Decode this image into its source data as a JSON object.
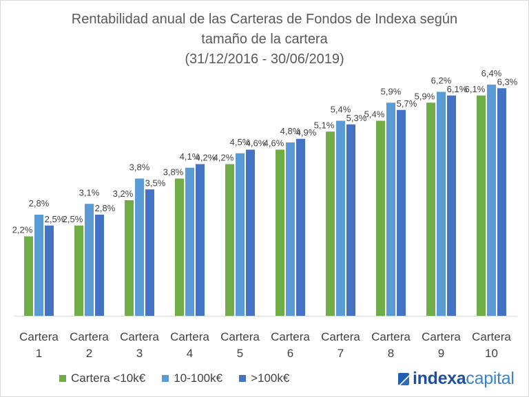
{
  "chart_data": {
    "type": "bar",
    "title": [
      "Rentabilidad anual de las Carteras de Fondos de Indexa según",
      "tamaño de la cartera",
      "(31/12/2016 - 30/06/2019)"
    ],
    "categories": [
      [
        "Cartera",
        "1"
      ],
      [
        "Cartera",
        "2"
      ],
      [
        "Cartera",
        "3"
      ],
      [
        "Cartera",
        "4"
      ],
      [
        "Cartera",
        "5"
      ],
      [
        "Cartera",
        "6"
      ],
      [
        "Cartera",
        "7"
      ],
      [
        "Cartera",
        "8"
      ],
      [
        "Cartera",
        "9"
      ],
      [
        "Cartera",
        "10"
      ]
    ],
    "series": [
      {
        "name": "Cartera <10k€",
        "color": "#70ad47",
        "values": [
          2.2,
          2.5,
          3.2,
          3.8,
          4.2,
          4.6,
          5.1,
          5.4,
          5.9,
          6.1
        ]
      },
      {
        "name": "10-100k€",
        "color": "#5b9bd5",
        "values": [
          2.8,
          3.1,
          3.8,
          4.1,
          4.5,
          4.8,
          5.4,
          5.9,
          6.2,
          6.4
        ]
      },
      {
        "name": ">100k€",
        "color": "#4472c4",
        "values": [
          2.5,
          2.8,
          3.5,
          4.2,
          4.6,
          4.9,
          5.3,
          5.7,
          6.1,
          6.3
        ]
      }
    ],
    "ylim": [
      0,
      7
    ],
    "grid": false,
    "legend_position": "bottom-left",
    "xlabel": "",
    "ylabel": ""
  },
  "logo": {
    "part1": "indexa",
    "part2": "capital"
  }
}
